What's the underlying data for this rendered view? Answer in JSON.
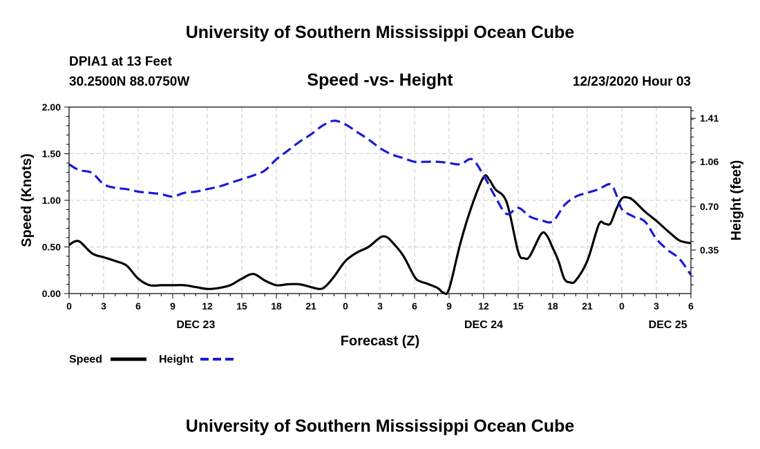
{
  "header": {
    "title": "University of Southern Mississippi Ocean Cube",
    "station": "DPIA1 at 13 Feet",
    "coords": "30.2500N 88.0750W",
    "datetime": "12/23/2020 Hour 03"
  },
  "footer": {
    "title": "University of Southern Mississippi Ocean Cube"
  },
  "colors": {
    "speed": "#000000",
    "height": "#1a1ad6",
    "grid": "#c8c8c8"
  },
  "chart_data": {
    "type": "line",
    "title": "Speed -vs- Height",
    "xlabel": "Forecast (Z)",
    "ylabel": "Speed (Knots)",
    "y2label": "Height (feet)",
    "x_unit": "hours since 2020-12-23 00Z",
    "xlim": [
      0,
      54
    ],
    "ylim": [
      0,
      2.0
    ],
    "y2lim": [
      0.0,
      1.5
    ],
    "x_ticks": [
      0,
      3,
      6,
      9,
      12,
      15,
      18,
      21,
      24,
      27,
      30,
      33,
      36,
      39,
      42,
      45,
      48,
      51,
      54
    ],
    "x_tick_labels": [
      "0",
      "3",
      "6",
      "9",
      "12",
      "15",
      "18",
      "21",
      "0",
      "3",
      "6",
      "9",
      "12",
      "15",
      "18",
      "21",
      "0",
      "3",
      "6"
    ],
    "y_ticks": [
      0.0,
      0.5,
      1.0,
      1.5,
      2.0
    ],
    "y_tick_labels": [
      "0.00",
      "0.50",
      "1.00",
      "1.50",
      "2.00"
    ],
    "y2_ticks": [
      0.35,
      0.7,
      1.06,
      1.41
    ],
    "y2_tick_labels": [
      "0.35",
      "0.70",
      "1.06",
      "1.41"
    ],
    "day_labels": [
      {
        "x": 11,
        "label": "DEC 23"
      },
      {
        "x": 36,
        "label": "DEC 24"
      },
      {
        "x": 52,
        "label": "DEC 25"
      }
    ],
    "grid": true,
    "legend": [
      {
        "name": "Speed",
        "style": "solid"
      },
      {
        "name": "Height",
        "style": "dashed"
      }
    ],
    "series": [
      {
        "name": "Speed",
        "axis": "left",
        "style": "solid",
        "points": [
          [
            0,
            0.52
          ],
          [
            0.5,
            0.56
          ],
          [
            1,
            0.55
          ],
          [
            2,
            0.43
          ],
          [
            3,
            0.39
          ],
          [
            4,
            0.35
          ],
          [
            5,
            0.3
          ],
          [
            6,
            0.16
          ],
          [
            7,
            0.09
          ],
          [
            8,
            0.09
          ],
          [
            9,
            0.09
          ],
          [
            10,
            0.09
          ],
          [
            11,
            0.07
          ],
          [
            12,
            0.05
          ],
          [
            13,
            0.06
          ],
          [
            14,
            0.09
          ],
          [
            15,
            0.16
          ],
          [
            16,
            0.21
          ],
          [
            17,
            0.14
          ],
          [
            18,
            0.09
          ],
          [
            19,
            0.1
          ],
          [
            20,
            0.1
          ],
          [
            21,
            0.07
          ],
          [
            21.7,
            0.05
          ],
          [
            22.2,
            0.07
          ],
          [
            23,
            0.18
          ],
          [
            24,
            0.35
          ],
          [
            25,
            0.44
          ],
          [
            26,
            0.5
          ],
          [
            27,
            0.6
          ],
          [
            27.5,
            0.61
          ],
          [
            28,
            0.56
          ],
          [
            29,
            0.41
          ],
          [
            30,
            0.18
          ],
          [
            30.5,
            0.13
          ],
          [
            31,
            0.11
          ],
          [
            32,
            0.06
          ],
          [
            32.5,
            0.01
          ],
          [
            33,
            0.05
          ],
          [
            34,
            0.55
          ],
          [
            35,
            0.95
          ],
          [
            36,
            1.25
          ],
          [
            36.5,
            1.22
          ],
          [
            37,
            1.12
          ],
          [
            38,
            0.98
          ],
          [
            39,
            0.45
          ],
          [
            39.5,
            0.38
          ],
          [
            40,
            0.4
          ],
          [
            41,
            0.64
          ],
          [
            41.5,
            0.62
          ],
          [
            42,
            0.49
          ],
          [
            42.5,
            0.35
          ],
          [
            43,
            0.16
          ],
          [
            43.5,
            0.12
          ],
          [
            44,
            0.14
          ],
          [
            45,
            0.35
          ],
          [
            46,
            0.74
          ],
          [
            46.5,
            0.75
          ],
          [
            47,
            0.75
          ],
          [
            47.5,
            0.9
          ],
          [
            48,
            1.02
          ],
          [
            48.5,
            1.03
          ],
          [
            49,
            1.0
          ],
          [
            50,
            0.88
          ],
          [
            51,
            0.78
          ],
          [
            52,
            0.67
          ],
          [
            53,
            0.57
          ],
          [
            54,
            0.54
          ]
        ]
      },
      {
        "name": "Height",
        "axis": "right",
        "style": "dashed",
        "points": [
          [
            0,
            1.04
          ],
          [
            0.5,
            1.01
          ],
          [
            1,
            0.99
          ],
          [
            2,
            0.97
          ],
          [
            3,
            0.88
          ],
          [
            4,
            0.85
          ],
          [
            5,
            0.84
          ],
          [
            6,
            0.82
          ],
          [
            7,
            0.81
          ],
          [
            8,
            0.8
          ],
          [
            9,
            0.78
          ],
          [
            10,
            0.81
          ],
          [
            11,
            0.82
          ],
          [
            12,
            0.84
          ],
          [
            13,
            0.86
          ],
          [
            14,
            0.89
          ],
          [
            15,
            0.92
          ],
          [
            16,
            0.95
          ],
          [
            17,
            0.99
          ],
          [
            18,
            1.08
          ],
          [
            19,
            1.15
          ],
          [
            20,
            1.22
          ],
          [
            21,
            1.28
          ],
          [
            22,
            1.35
          ],
          [
            23,
            1.39
          ],
          [
            24,
            1.36
          ],
          [
            25,
            1.3
          ],
          [
            26,
            1.24
          ],
          [
            27,
            1.17
          ],
          [
            28,
            1.12
          ],
          [
            29,
            1.09
          ],
          [
            30,
            1.06
          ],
          [
            31,
            1.06
          ],
          [
            32,
            1.06
          ],
          [
            33,
            1.05
          ],
          [
            34,
            1.04
          ],
          [
            35,
            1.08
          ],
          [
            36,
            0.95
          ],
          [
            37,
            0.78
          ],
          [
            38,
            0.64
          ],
          [
            39,
            0.69
          ],
          [
            40,
            0.62
          ],
          [
            41,
            0.59
          ],
          [
            42,
            0.58
          ],
          [
            43,
            0.71
          ],
          [
            44,
            0.78
          ],
          [
            45,
            0.81
          ],
          [
            46,
            0.84
          ],
          [
            47,
            0.88
          ],
          [
            47.5,
            0.8
          ],
          [
            48,
            0.68
          ],
          [
            49,
            0.62
          ],
          [
            50,
            0.58
          ],
          [
            51,
            0.44
          ],
          [
            52,
            0.35
          ],
          [
            53,
            0.28
          ],
          [
            54,
            0.15
          ]
        ]
      }
    ]
  }
}
